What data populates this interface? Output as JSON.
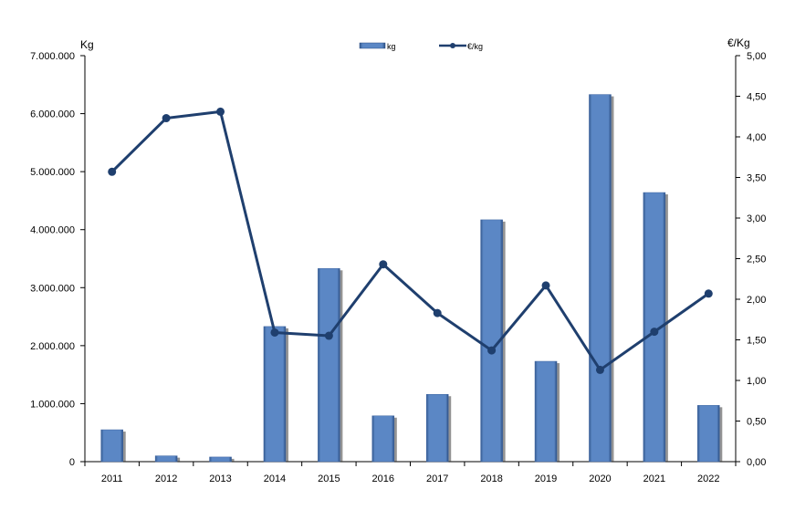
{
  "chart_data": {
    "type": "bar",
    "categories": [
      "2011",
      "2012",
      "2013",
      "2014",
      "2015",
      "2016",
      "2017",
      "2018",
      "2019",
      "2020",
      "2021",
      "2022"
    ],
    "series": [
      {
        "name": "kg",
        "type": "bar",
        "axis": "left",
        "color": "#5B87C5",
        "values": [
          550000,
          100000,
          80000,
          2330000,
          3330000,
          790000,
          1160000,
          4170000,
          1730000,
          6330000,
          4640000,
          970000
        ]
      },
      {
        "name": "€/kg",
        "type": "line",
        "axis": "right",
        "color": "#1F3F6E",
        "values": [
          3.57,
          4.23,
          4.31,
          1.59,
          1.55,
          2.43,
          1.83,
          1.37,
          2.17,
          1.13,
          1.6,
          2.07
        ]
      }
    ],
    "y_left": {
      "label": "Kg",
      "ylim": [
        0,
        7000000
      ],
      "ticks": [
        "0",
        "1.000.000",
        "2.000.000",
        "3.000.000",
        "4.000.000",
        "5.000.000",
        "6.000.000",
        "7.000.000"
      ]
    },
    "y_right": {
      "label": "€/Kg",
      "ylim": [
        0,
        5
      ],
      "ticks": [
        "0,00",
        "0,50",
        "1,00",
        "1,50",
        "2,00",
        "2,50",
        "3,00",
        "3,50",
        "4,00",
        "4,50",
        "5,00"
      ]
    },
    "grid": false,
    "legend_position": "top-center"
  }
}
